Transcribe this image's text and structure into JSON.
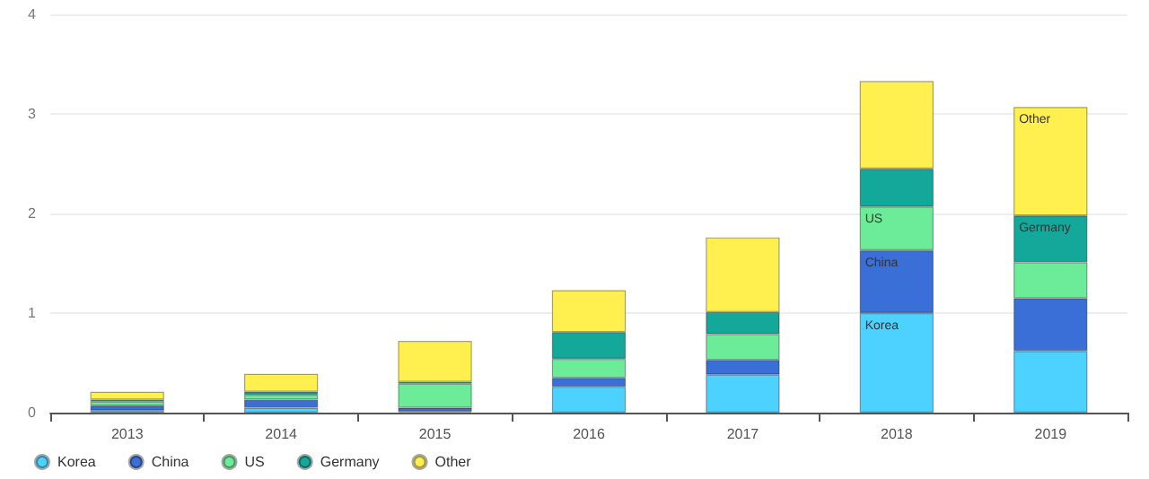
{
  "chart_data": {
    "type": "bar",
    "stacked": true,
    "categories": [
      "2013",
      "2014",
      "2015",
      "2016",
      "2017",
      "2018",
      "2019"
    ],
    "series": [
      {
        "name": "Korea",
        "color": "#4dd2ff",
        "values": [
          0.02,
          0.05,
          0.01,
          0.26,
          0.38,
          1.0,
          0.62
        ]
      },
      {
        "name": "China",
        "color": "#3a6fd8",
        "values": [
          0.05,
          0.08,
          0.04,
          0.09,
          0.15,
          0.63,
          0.53
        ]
      },
      {
        "name": "US",
        "color": "#6cec98",
        "values": [
          0.04,
          0.05,
          0.24,
          0.19,
          0.26,
          0.44,
          0.36
        ]
      },
      {
        "name": "Germany",
        "color": "#14a89a",
        "values": [
          0.02,
          0.03,
          0.02,
          0.27,
          0.22,
          0.38,
          0.47
        ]
      },
      {
        "name": "Other",
        "color": "#fff04f",
        "values": [
          0.08,
          0.18,
          0.41,
          0.42,
          0.75,
          0.88,
          1.09
        ]
      }
    ],
    "ylim": [
      0,
      4
    ],
    "yticks": [
      0,
      1,
      2,
      3,
      4
    ],
    "grid": "y",
    "legend": "bottom left",
    "annotations": [
      "Korea",
      "China",
      "US",
      "Germany",
      "Other"
    ]
  }
}
